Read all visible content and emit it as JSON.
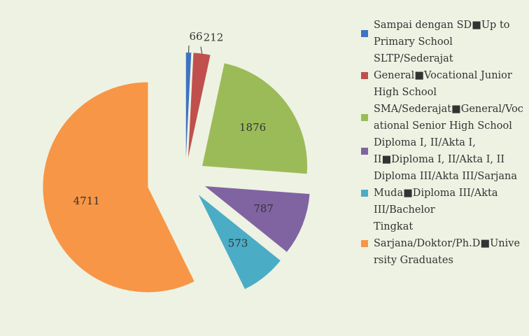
{
  "chart_data": {
    "type": "pie",
    "series": [
      {
        "name": "Sampai dengan SD■Up to Primary School",
        "color": "#3f72c4",
        "values": [
          66
        ]
      },
      {
        "name": "SLTP/Sederajat General■Vocational Junior High School",
        "color": "#c0504d",
        "values": [
          212
        ]
      },
      {
        "name": "SMA/Sederajat■General/Vocational Senior High School",
        "color": "#9bbb59",
        "values": [
          1876
        ]
      },
      {
        "name": "Diploma I, II/Akta I, II■Diploma I, II/Akta I, II",
        "color": "#8064a2",
        "values": [
          787
        ]
      },
      {
        "name": "Diploma III/Akta III/Sarjana Muda■Diploma III/Akta III/Bachelor",
        "color": "#4bacc6",
        "values": [
          573
        ]
      },
      {
        "name": "Tingkat Sarjana/Doktor/Ph.D■University Graduates",
        "color": "#f79646",
        "values": [
          4711
        ]
      }
    ],
    "legend": "right"
  }
}
